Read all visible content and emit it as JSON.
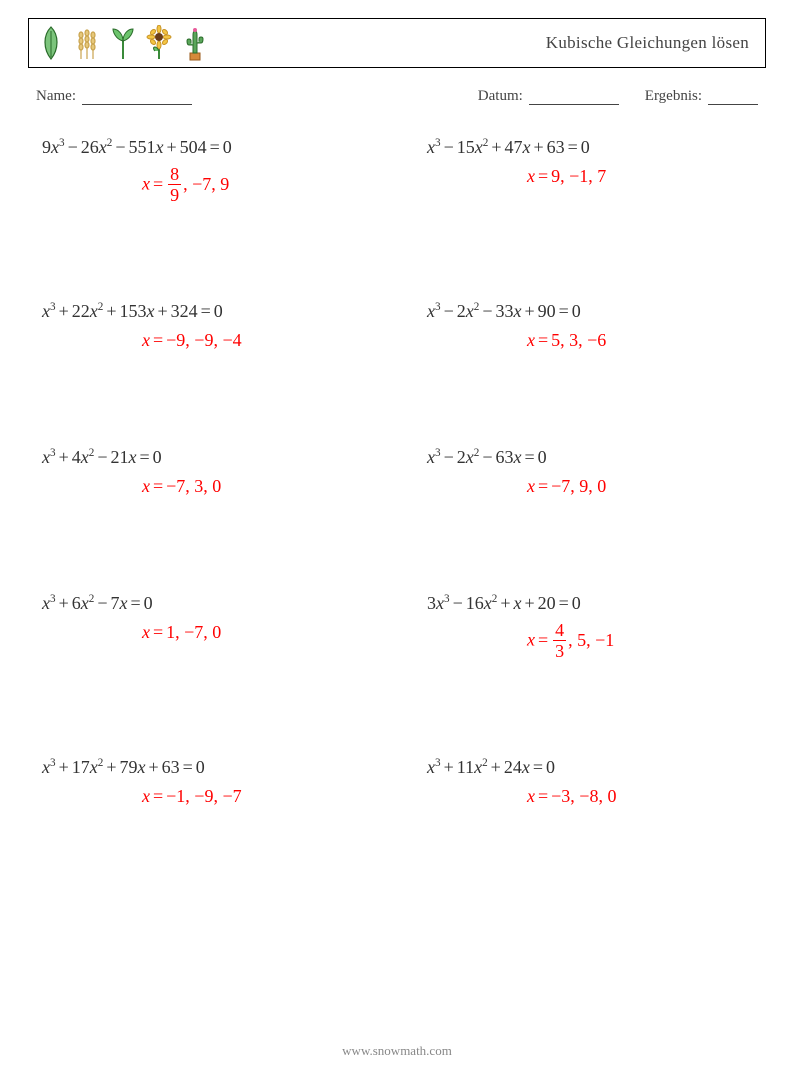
{
  "title": "Kubische Gleichungen lösen",
  "labels": {
    "name": "Name:",
    "date": "Datum:",
    "result": "Ergebnis:"
  },
  "answer_color": "#ff0000",
  "equation_color": "#333333",
  "problems": [
    {
      "coeffs": [
        9,
        -26,
        -551,
        504
      ],
      "answers": [
        {
          "n": 8,
          "d": 9
        },
        -7,
        9
      ]
    },
    {
      "coeffs": [
        1,
        -15,
        47,
        63
      ],
      "answers": [
        9,
        -1,
        7
      ]
    },
    {
      "coeffs": [
        1,
        22,
        153,
        324
      ],
      "answers": [
        -9,
        -9,
        -4
      ]
    },
    {
      "coeffs": [
        1,
        -2,
        -33,
        90
      ],
      "answers": [
        5,
        3,
        -6
      ]
    },
    {
      "coeffs": [
        1,
        4,
        -21,
        0
      ],
      "answers": [
        -7,
        3,
        0
      ]
    },
    {
      "coeffs": [
        1,
        -2,
        -63,
        0
      ],
      "answers": [
        -7,
        9,
        0
      ]
    },
    {
      "coeffs": [
        1,
        6,
        -7,
        0
      ],
      "answers": [
        1,
        -7,
        0
      ]
    },
    {
      "coeffs": [
        3,
        -16,
        1,
        20
      ],
      "answers": [
        {
          "n": 4,
          "d": 3
        },
        5,
        -1
      ]
    },
    {
      "coeffs": [
        1,
        17,
        79,
        63
      ],
      "answers": [
        -1,
        -9,
        -7
      ]
    },
    {
      "coeffs": [
        1,
        11,
        24,
        0
      ],
      "answers": [
        -3,
        -8,
        0
      ]
    }
  ],
  "footer": "www.snowmath.com"
}
